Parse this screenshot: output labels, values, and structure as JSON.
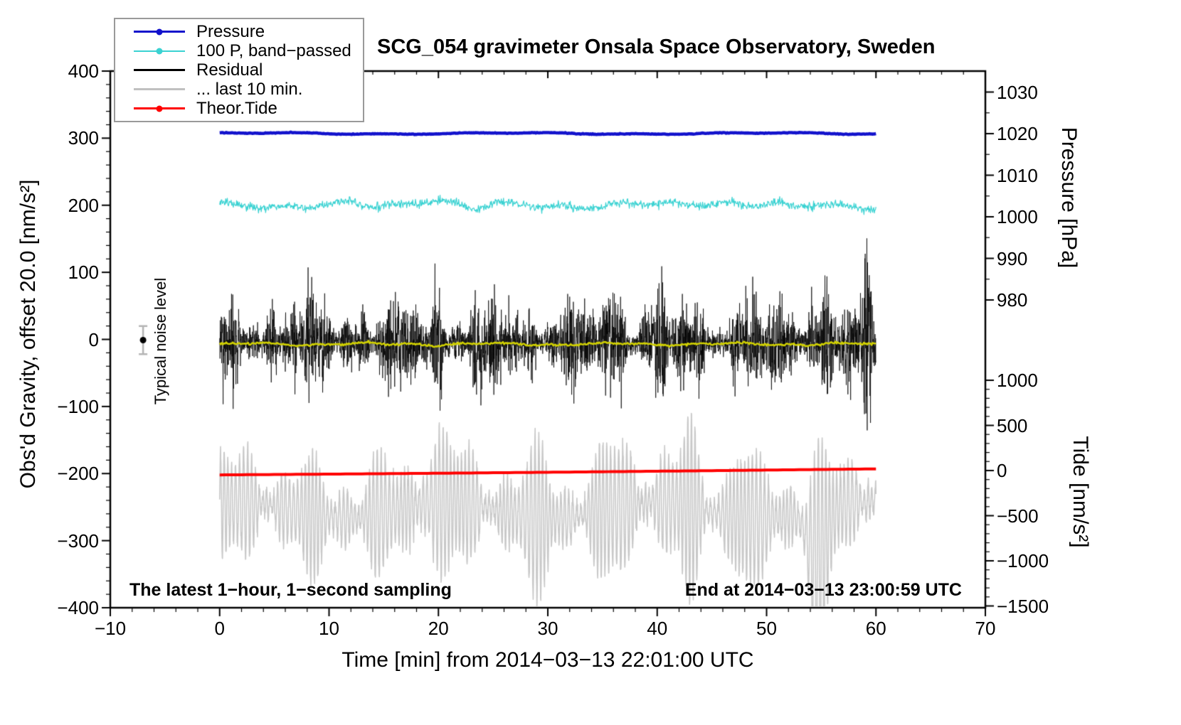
{
  "title": "SCG_054 gravimeter Onsala Space Observatory, Sweden",
  "annotations": {
    "noise_label": "Typical noise level",
    "sampling_note": "The latest 1−hour, 1−second sampling",
    "end_note": "End at 2014−03−13 23:00:59 UTC"
  },
  "legend": {
    "items": [
      {
        "label": "Pressure",
        "color": "#1212cc",
        "marker": "dot-line",
        "thickness": 3
      },
      {
        "label": "100 P, band−passed",
        "color": "#3ad2d2",
        "marker": "dot-line",
        "thickness": 2
      },
      {
        "label": "Residual",
        "color": "#000000",
        "marker": "line",
        "thickness": 3
      },
      {
        "label": "... last 10 min.",
        "color": "#c0c0c0",
        "marker": "line",
        "thickness": 3
      },
      {
        "label": "Theor.Tide",
        "color": "#ff0000",
        "marker": "dot-line",
        "thickness": 3
      }
    ]
  },
  "axes": {
    "x": {
      "label": "Time [min] from 2014−03−13 22:01:00 UTC",
      "range": [
        -10,
        70
      ],
      "ticks": [
        {
          "value": -10,
          "label": "−10"
        },
        {
          "value": 0,
          "label": "0"
        },
        {
          "value": 10,
          "label": "10"
        },
        {
          "value": 20,
          "label": "20"
        },
        {
          "value": 30,
          "label": "30"
        },
        {
          "value": 40,
          "label": "40"
        },
        {
          "value": 50,
          "label": "50"
        },
        {
          "value": 60,
          "label": "60"
        },
        {
          "value": 70,
          "label": "70"
        }
      ]
    },
    "left": {
      "label": "Obs'd Gravity, offset 20.0 [nm/s²]",
      "range": [
        -400,
        400
      ],
      "ticks": [
        {
          "value": 400,
          "label": "400"
        },
        {
          "value": 300,
          "label": "300"
        },
        {
          "value": 200,
          "label": "200"
        },
        {
          "value": 100,
          "label": "100"
        },
        {
          "value": 0,
          "label": "0"
        },
        {
          "value": -100,
          "label": "−100"
        },
        {
          "value": -200,
          "label": "−200"
        },
        {
          "value": -300,
          "label": "−300"
        },
        {
          "value": -400,
          "label": "−400"
        }
      ]
    },
    "pressure": {
      "label": "Pressure [hPa]",
      "ticks": [
        {
          "value": 1030,
          "label": "1030"
        },
        {
          "value": 1020,
          "label": "1020"
        },
        {
          "value": 1010,
          "label": "1010"
        },
        {
          "value": 1000,
          "label": "1000"
        },
        {
          "value": 990,
          "label": "990"
        },
        {
          "value": 980,
          "label": "980"
        }
      ]
    },
    "tide": {
      "label": "Tide [nm/s²]",
      "ticks": [
        {
          "value": 1000,
          "label": "1000"
        },
        {
          "value": 500,
          "label": "500"
        },
        {
          "value": 0,
          "label": "0"
        },
        {
          "value": -500,
          "label": "−500"
        },
        {
          "value": -1000,
          "label": "−1000"
        },
        {
          "value": -1500,
          "label": "−1500"
        }
      ]
    }
  },
  "chart_data": {
    "type": "line",
    "title": "SCG_054 gravimeter Onsala Space Observatory, Sweden",
    "xlabel": "Time [min] from 2014−03−13 22:01:00 UTC",
    "x_axis_range_min": [
      -10,
      70
    ],
    "data_span_min": [
      0,
      60
    ],
    "sampling": "1-second",
    "left_axis_range": [
      -400,
      400
    ],
    "pressure_axis_ticks_hPa": [
      980,
      990,
      1000,
      1010,
      1020,
      1030
    ],
    "tide_axis_ticks": [
      -1500,
      -1000,
      -500,
      0,
      500,
      1000
    ],
    "series": [
      {
        "name": "Pressure",
        "color": "#1212cc",
        "line_width": 4.5,
        "gravity_axis_level": 307,
        "approx_value_hPa": 1020,
        "variation_amplitude": 1.5
      },
      {
        "name": "100 P, band−passed",
        "color": "#3ad2d2",
        "line_width": 1.2,
        "gravity_axis_level": 200,
        "noise_amplitude": 3.2,
        "bump_minutes": [
          19.5,
          45.8
        ],
        "dip_minutes": [
          23.5,
          52.5
        ]
      },
      {
        "name": "Residual",
        "color": "#000000",
        "line_width": 0.75,
        "mean": -5,
        "typical_envelope": 22,
        "burst_minutes": [
          19.8,
          36.4,
          40.2,
          54.7,
          59.2
        ],
        "extreme_range": [
          -180,
          165
        ]
      },
      {
        "name": "Residual smoothed",
        "color": "#d2d200",
        "line_width": 2.5,
        "mean": -7
      },
      {
        "name": "... last 10 min.",
        "color": "#c8c8c8",
        "line_width": 1.6,
        "center": -255,
        "oscillation_period_min": 0.35,
        "amplitude_range": [
          15,
          150
        ],
        "largest_excursion_min": 54.6
      },
      {
        "name": "Theor.Tide",
        "color": "#ff0000",
        "line_width": 4,
        "start_gravity_axis": -202,
        "end_gravity_axis": -193,
        "tide_axis_start": -60,
        "tide_axis_end": 10
      }
    ],
    "noise_marker": {
      "x_min": -7,
      "center_value": -1,
      "halfwidth": 21
    }
  }
}
